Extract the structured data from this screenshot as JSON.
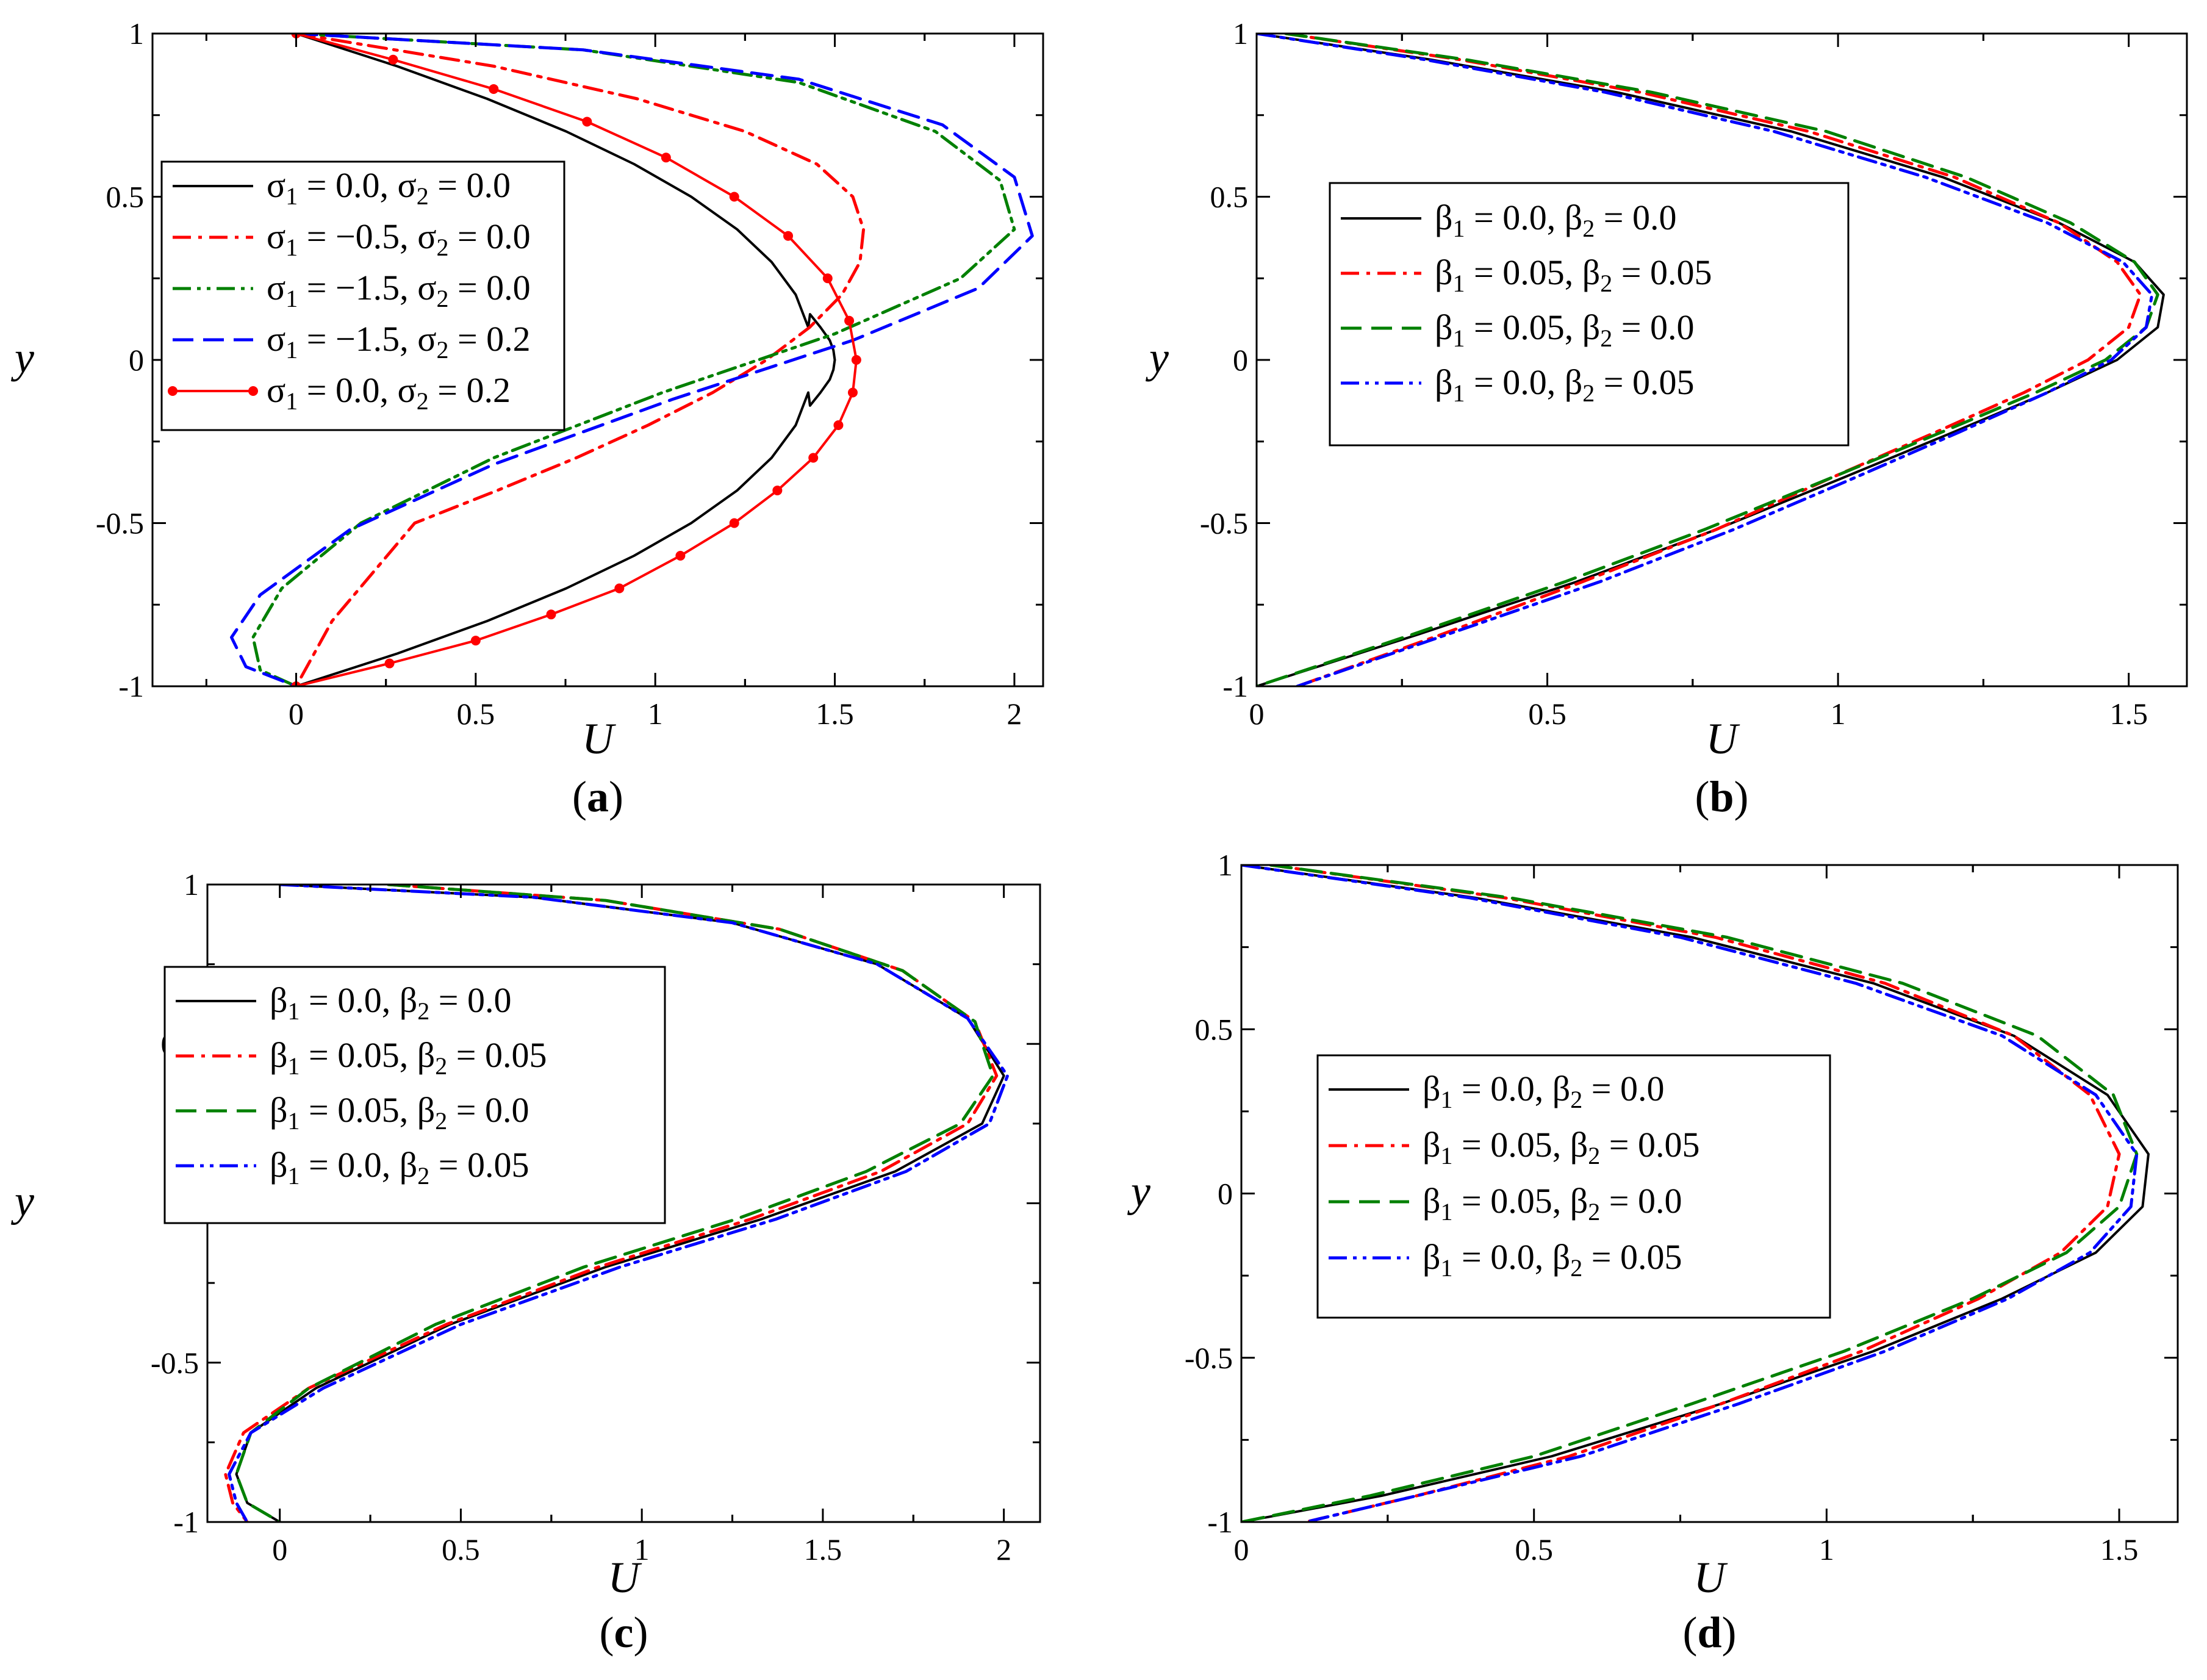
{
  "chart_data": [
    {
      "type": "line",
      "panel_label": "(a)",
      "panel_label_prefix": "(",
      "panel_label_letter": "a",
      "panel_label_suffix": ")",
      "xlabel": "U",
      "ylabel": "y",
      "xlim": [
        -0.4,
        2.08
      ],
      "ylim": [
        -1,
        1
      ],
      "xticks": [
        0,
        0.5,
        1,
        1.5,
        2
      ],
      "xtick_labels": [
        "0",
        "0.5",
        "1",
        "1.5",
        "2"
      ],
      "yticks": [
        -1,
        -0.5,
        0,
        0.5,
        1
      ],
      "ytick_labels": [
        "-1",
        "-0.5",
        "0",
        "0.5",
        "1"
      ],
      "grid": false,
      "legend_position": "left",
      "series": [
        {
          "sym1": "σ",
          "sub1": "1",
          "val1": " = 0.0, ",
          "sym2": "σ",
          "sub2": "2",
          "val2": " = 0.0",
          "color": "#000000",
          "dash": "solid",
          "markers": false,
          "x": [
            0,
            0.281,
            0.532,
            0.752,
            0.941,
            1.1,
            1.228,
            1.324,
            1.391,
            1.426,
            1.431,
            1.46,
            1.486,
            1.496,
            1.5,
            1.496,
            1.486,
            1.46,
            1.431,
            1.426,
            1.391,
            1.324,
            1.228,
            1.1,
            0.941,
            0.752,
            0.532,
            0.281,
            0
          ],
          "y": [
            1,
            0.9,
            0.8,
            0.7,
            0.6,
            0.5,
            0.4,
            0.3,
            0.2,
            0.1,
            0.14,
            0.1,
            0.06,
            0.03,
            0,
            -0.03,
            -0.06,
            -0.1,
            -0.14,
            -0.1,
            -0.2,
            -0.3,
            -0.4,
            -0.5,
            -0.6,
            -0.7,
            -0.8,
            -0.9,
            -1
          ]
        },
        {
          "sym1": "σ",
          "sub1": "1",
          "val1": " = −0.5, ",
          "sym2": "σ",
          "sub2": "2",
          "val2": " = 0.0",
          "color": "#ff0000",
          "dash": "dashdot",
          "markers": false,
          "x": [
            0,
            0.55,
            0.95,
            1.25,
            1.45,
            1.55,
            1.58,
            1.57,
            1.52,
            1.43,
            1.31,
            1.16,
            0.98,
            0.78,
            0.56,
            0.33,
            0.1,
            0
          ],
          "y": [
            1,
            0.9,
            0.8,
            0.7,
            0.6,
            0.5,
            0.4,
            0.3,
            0.2,
            0.1,
            0,
            -0.1,
            -0.2,
            -0.3,
            -0.4,
            -0.5,
            -0.8,
            -1
          ]
        },
        {
          "sym1": "σ",
          "sub1": "1",
          "val1": " = −1.5, ",
          "sym2": "σ",
          "sub2": "2",
          "val2": " = 0.0",
          "color": "#008000",
          "dash": "dashdotdot",
          "markers": false,
          "x": [
            0,
            0.8,
            1.4,
            1.78,
            1.96,
            2.0,
            1.85,
            1.5,
            1.02,
            0.55,
            0.18,
            -0.04,
            -0.12,
            -0.1,
            0
          ],
          "y": [
            1,
            0.95,
            0.85,
            0.7,
            0.55,
            0.4,
            0.25,
            0.08,
            -0.1,
            -0.3,
            -0.5,
            -0.7,
            -0.85,
            -0.95,
            -1
          ]
        },
        {
          "sym1": "σ",
          "sub1": "1",
          "val1": " = −1.5, ",
          "sym2": "σ",
          "sub2": "2",
          "val2": " = 0.2",
          "color": "#0000ff",
          "dash": "dashed",
          "markers": false,
          "x": [
            0,
            0.8,
            1.4,
            1.8,
            2.0,
            2.05,
            1.9,
            1.55,
            1.05,
            0.55,
            0.15,
            -0.1,
            -0.18,
            -0.14,
            0
          ],
          "y": [
            1,
            0.95,
            0.86,
            0.72,
            0.56,
            0.38,
            0.22,
            0.06,
            -0.12,
            -0.32,
            -0.52,
            -0.72,
            -0.85,
            -0.94,
            -1
          ]
        },
        {
          "sym1": "σ",
          "sub1": "1",
          "val1": " = 0.0, ",
          "sym2": "σ",
          "sub2": "2",
          "val2": " = 0.2",
          "color": "#ff0000",
          "dash": "solid",
          "markers": true,
          "x": [
            0,
            0.27,
            0.55,
            0.81,
            1.03,
            1.22,
            1.37,
            1.48,
            1.54,
            1.56,
            1.55,
            1.51,
            1.44,
            1.34,
            1.22,
            1.07,
            0.9,
            0.71,
            0.5,
            0.26,
            0
          ],
          "y": [
            1,
            0.92,
            0.83,
            0.73,
            0.62,
            0.5,
            0.38,
            0.25,
            0.12,
            0,
            -0.1,
            -0.2,
            -0.3,
            -0.4,
            -0.5,
            -0.6,
            -0.7,
            -0.78,
            -0.86,
            -0.93,
            -1
          ]
        }
      ]
    },
    {
      "type": "line",
      "panel_label": "(b)",
      "panel_label_prefix": "(",
      "panel_label_letter": "b",
      "panel_label_suffix": ")",
      "xlabel": "U",
      "ylabel": "y",
      "xlim": [
        0,
        1.6
      ],
      "ylim": [
        -1,
        1
      ],
      "xticks": [
        0,
        0.5,
        1,
        1.5
      ],
      "xtick_labels": [
        "0",
        "0.5",
        "1",
        "1.5"
      ],
      "yticks": [
        -1,
        -0.5,
        0,
        0.5,
        1
      ],
      "ytick_labels": [
        "-1",
        "-0.5",
        "0",
        "0.5",
        "1"
      ],
      "grid": false,
      "legend_position": "left",
      "series": [
        {
          "sym1": "β",
          "sub1": "1",
          "val1": " = 0.0, ",
          "sym2": "β",
          "sub2": "2",
          "val2": " = 0.0",
          "color": "#000000",
          "dash": "solid",
          "markers": false,
          "x": [
            0,
            0.3,
            0.62,
            0.92,
            1.18,
            1.38,
            1.51,
            1.56,
            1.55,
            1.48,
            1.36,
            1.2,
            1.01,
            0.79,
            0.55,
            0.28,
            0
          ],
          "y": [
            1,
            0.92,
            0.82,
            0.7,
            0.56,
            0.42,
            0.3,
            0.2,
            0.1,
            0,
            -0.1,
            -0.22,
            -0.36,
            -0.52,
            -0.68,
            -0.84,
            -1
          ]
        },
        {
          "sym1": "β",
          "sub1": "1",
          "val1": " = 0.05, ",
          "sym2": "β",
          "sub2": "2",
          "val2": " = 0.05",
          "color": "#ff0000",
          "dash": "dashdot",
          "markers": false,
          "x": [
            0.05,
            0.35,
            0.66,
            0.95,
            1.2,
            1.38,
            1.48,
            1.52,
            1.5,
            1.43,
            1.32,
            1.17,
            0.99,
            0.79,
            0.56,
            0.32,
            0.07
          ],
          "y": [
            1,
            0.92,
            0.82,
            0.7,
            0.56,
            0.42,
            0.3,
            0.2,
            0.1,
            0,
            -0.1,
            -0.22,
            -0.36,
            -0.52,
            -0.68,
            -0.84,
            -1
          ]
        },
        {
          "sym1": "β",
          "sub1": "1",
          "val1": " = 0.05, ",
          "sym2": "β",
          "sub2": "2",
          "val2": " = 0.0",
          "color": "#008000",
          "dash": "dashed",
          "markers": false,
          "x": [
            0.05,
            0.36,
            0.68,
            0.98,
            1.22,
            1.4,
            1.51,
            1.55,
            1.53,
            1.46,
            1.34,
            1.18,
            0.99,
            0.77,
            0.53,
            0.27,
            0
          ],
          "y": [
            1,
            0.92,
            0.82,
            0.7,
            0.56,
            0.42,
            0.3,
            0.2,
            0.1,
            0,
            -0.1,
            -0.22,
            -0.36,
            -0.52,
            -0.68,
            -0.84,
            -1
          ]
        },
        {
          "sym1": "β",
          "sub1": "1",
          "val1": " = 0.0, ",
          "sym2": "β",
          "sub2": "2",
          "val2": " = 0.05",
          "color": "#0000ff",
          "dash": "dashdotdot",
          "markers": false,
          "x": [
            0,
            0.29,
            0.6,
            0.89,
            1.15,
            1.36,
            1.49,
            1.54,
            1.53,
            1.47,
            1.36,
            1.21,
            1.03,
            0.82,
            0.59,
            0.33,
            0.07
          ],
          "y": [
            1,
            0.92,
            0.82,
            0.7,
            0.56,
            0.42,
            0.3,
            0.2,
            0.1,
            0,
            -0.1,
            -0.22,
            -0.36,
            -0.52,
            -0.68,
            -0.84,
            -1
          ]
        }
      ]
    },
    {
      "type": "line",
      "panel_label": "(c)",
      "panel_label_prefix": "(",
      "panel_label_letter": "c",
      "panel_label_suffix": ")",
      "xlabel": "U",
      "ylabel": "y",
      "xlim": [
        -0.2,
        2.1
      ],
      "ylim": [
        -1,
        1
      ],
      "xticks": [
        0,
        0.5,
        1,
        1.5,
        2
      ],
      "xtick_labels": [
        "0",
        "0.5",
        "1",
        "1.5",
        "2"
      ],
      "yticks": [
        -1,
        -0.5,
        0,
        0.5,
        1
      ],
      "ytick_labels": [
        "-1",
        "-0.5",
        "0",
        "0.5",
        "1"
      ],
      "grid": false,
      "legend_position": "left",
      "series": [
        {
          "sym1": "β",
          "sub1": "1",
          "val1": " = 0.0, ",
          "sym2": "β",
          "sub2": "2",
          "val2": " = 0.0",
          "color": "#000000",
          "dash": "solid",
          "markers": false,
          "x": [
            0,
            0.7,
            1.25,
            1.65,
            1.9,
            2.0,
            1.94,
            1.7,
            1.33,
            0.9,
            0.47,
            0.1,
            -0.08,
            -0.12,
            -0.09,
            0
          ],
          "y": [
            1,
            0.96,
            0.88,
            0.75,
            0.58,
            0.4,
            0.25,
            0.1,
            -0.05,
            -0.2,
            -0.38,
            -0.58,
            -0.72,
            -0.85,
            -0.94,
            -1
          ]
        },
        {
          "sym1": "β",
          "sub1": "1",
          "val1": " = 0.05, ",
          "sym2": "β",
          "sub2": "2",
          "val2": " = 0.05",
          "color": "#ff0000",
          "dash": "dashdot",
          "markers": false,
          "x": [
            0.3,
            0.9,
            1.38,
            1.72,
            1.92,
            1.98,
            1.9,
            1.66,
            1.3,
            0.88,
            0.46,
            0.08,
            -0.1,
            -0.15,
            -0.13,
            -0.09
          ],
          "y": [
            1,
            0.95,
            0.86,
            0.73,
            0.57,
            0.4,
            0.25,
            0.1,
            -0.05,
            -0.2,
            -0.38,
            -0.58,
            -0.72,
            -0.85,
            -0.94,
            -1
          ]
        },
        {
          "sym1": "β",
          "sub1": "1",
          "val1": " = 0.05, ",
          "sym2": "β",
          "sub2": "2",
          "val2": " = 0.0",
          "color": "#008000",
          "dash": "dashed",
          "markers": false,
          "x": [
            0.3,
            0.9,
            1.38,
            1.72,
            1.92,
            1.97,
            1.88,
            1.62,
            1.26,
            0.84,
            0.43,
            0.08,
            -0.08,
            -0.12,
            -0.09,
            0
          ],
          "y": [
            1,
            0.95,
            0.86,
            0.73,
            0.57,
            0.4,
            0.25,
            0.1,
            -0.05,
            -0.2,
            -0.38,
            -0.58,
            -0.72,
            -0.85,
            -0.94,
            -1
          ]
        },
        {
          "sym1": "β",
          "sub1": "1",
          "val1": " = 0.0, ",
          "sym2": "β",
          "sub2": "2",
          "val2": " = 0.05",
          "color": "#0000ff",
          "dash": "dashdotdot",
          "markers": false,
          "x": [
            0,
            0.7,
            1.25,
            1.65,
            1.9,
            2.01,
            1.96,
            1.73,
            1.37,
            0.94,
            0.5,
            0.12,
            -0.08,
            -0.14,
            -0.12,
            -0.09
          ],
          "y": [
            1,
            0.96,
            0.88,
            0.75,
            0.58,
            0.4,
            0.25,
            0.1,
            -0.05,
            -0.2,
            -0.38,
            -0.58,
            -0.72,
            -0.85,
            -0.94,
            -1
          ]
        }
      ]
    },
    {
      "type": "line",
      "panel_label": "(d)",
      "panel_label_prefix": "(",
      "panel_label_letter": "d",
      "panel_label_suffix": ")",
      "xlabel": "U",
      "ylabel": "y",
      "xlim": [
        0,
        1.6
      ],
      "ylim": [
        -1,
        1
      ],
      "xticks": [
        0,
        0.5,
        1,
        1.5
      ],
      "xtick_labels": [
        "0",
        "0.5",
        "1",
        "1.5"
      ],
      "yticks": [
        -1,
        -0.5,
        0,
        0.5,
        1
      ],
      "ytick_labels": [
        "-1",
        "-0.5",
        "0",
        "0.5",
        "1"
      ],
      "grid": false,
      "legend_position": "left",
      "series": [
        {
          "sym1": "β",
          "sub1": "1",
          "val1": " = 0.0, ",
          "sym2": "β",
          "sub2": "2",
          "val2": " = 0.0",
          "color": "#000000",
          "dash": "solid",
          "markers": false,
          "x": [
            0,
            0.4,
            0.77,
            1.08,
            1.32,
            1.48,
            1.55,
            1.54,
            1.46,
            1.3,
            1.08,
            0.82,
            0.53,
            0.24,
            0
          ],
          "y": [
            1,
            0.9,
            0.78,
            0.64,
            0.48,
            0.3,
            0.12,
            -0.04,
            -0.18,
            -0.32,
            -0.48,
            -0.64,
            -0.8,
            -0.92,
            -1
          ]
        },
        {
          "sym1": "β",
          "sub1": "1",
          "val1": " = 0.05, ",
          "sym2": "β",
          "sub2": "2",
          "val2": " = 0.05",
          "color": "#ff0000",
          "dash": "dashdot",
          "markers": false,
          "x": [
            0.05,
            0.45,
            0.81,
            1.1,
            1.32,
            1.45,
            1.5,
            1.48,
            1.4,
            1.26,
            1.06,
            0.82,
            0.56,
            0.3,
            0.11
          ],
          "y": [
            1,
            0.9,
            0.78,
            0.64,
            0.48,
            0.3,
            0.12,
            -0.04,
            -0.18,
            -0.32,
            -0.48,
            -0.64,
            -0.8,
            -0.92,
            -1
          ]
        },
        {
          "sym1": "β",
          "sub1": "1",
          "val1": " = 0.05, ",
          "sym2": "β",
          "sub2": "2",
          "val2": " = 0.0",
          "color": "#008000",
          "dash": "dashed",
          "markers": false,
          "x": [
            0.05,
            0.46,
            0.83,
            1.13,
            1.36,
            1.49,
            1.53,
            1.5,
            1.41,
            1.25,
            1.03,
            0.77,
            0.5,
            0.22,
            0
          ],
          "y": [
            1,
            0.9,
            0.78,
            0.64,
            0.48,
            0.3,
            0.12,
            -0.04,
            -0.18,
            -0.32,
            -0.48,
            -0.64,
            -0.8,
            -0.92,
            -1
          ]
        },
        {
          "sym1": "β",
          "sub1": "1",
          "val1": " = 0.0, ",
          "sym2": "β",
          "sub2": "2",
          "val2": " = 0.05",
          "color": "#0000ff",
          "dash": "dashdotdot",
          "markers": false,
          "x": [
            0,
            0.39,
            0.75,
            1.05,
            1.3,
            1.46,
            1.53,
            1.52,
            1.45,
            1.31,
            1.1,
            0.85,
            0.58,
            0.3,
            0.11
          ],
          "y": [
            1,
            0.9,
            0.78,
            0.64,
            0.48,
            0.3,
            0.12,
            -0.04,
            -0.18,
            -0.32,
            -0.48,
            -0.64,
            -0.8,
            -0.92,
            -1
          ]
        }
      ]
    }
  ]
}
